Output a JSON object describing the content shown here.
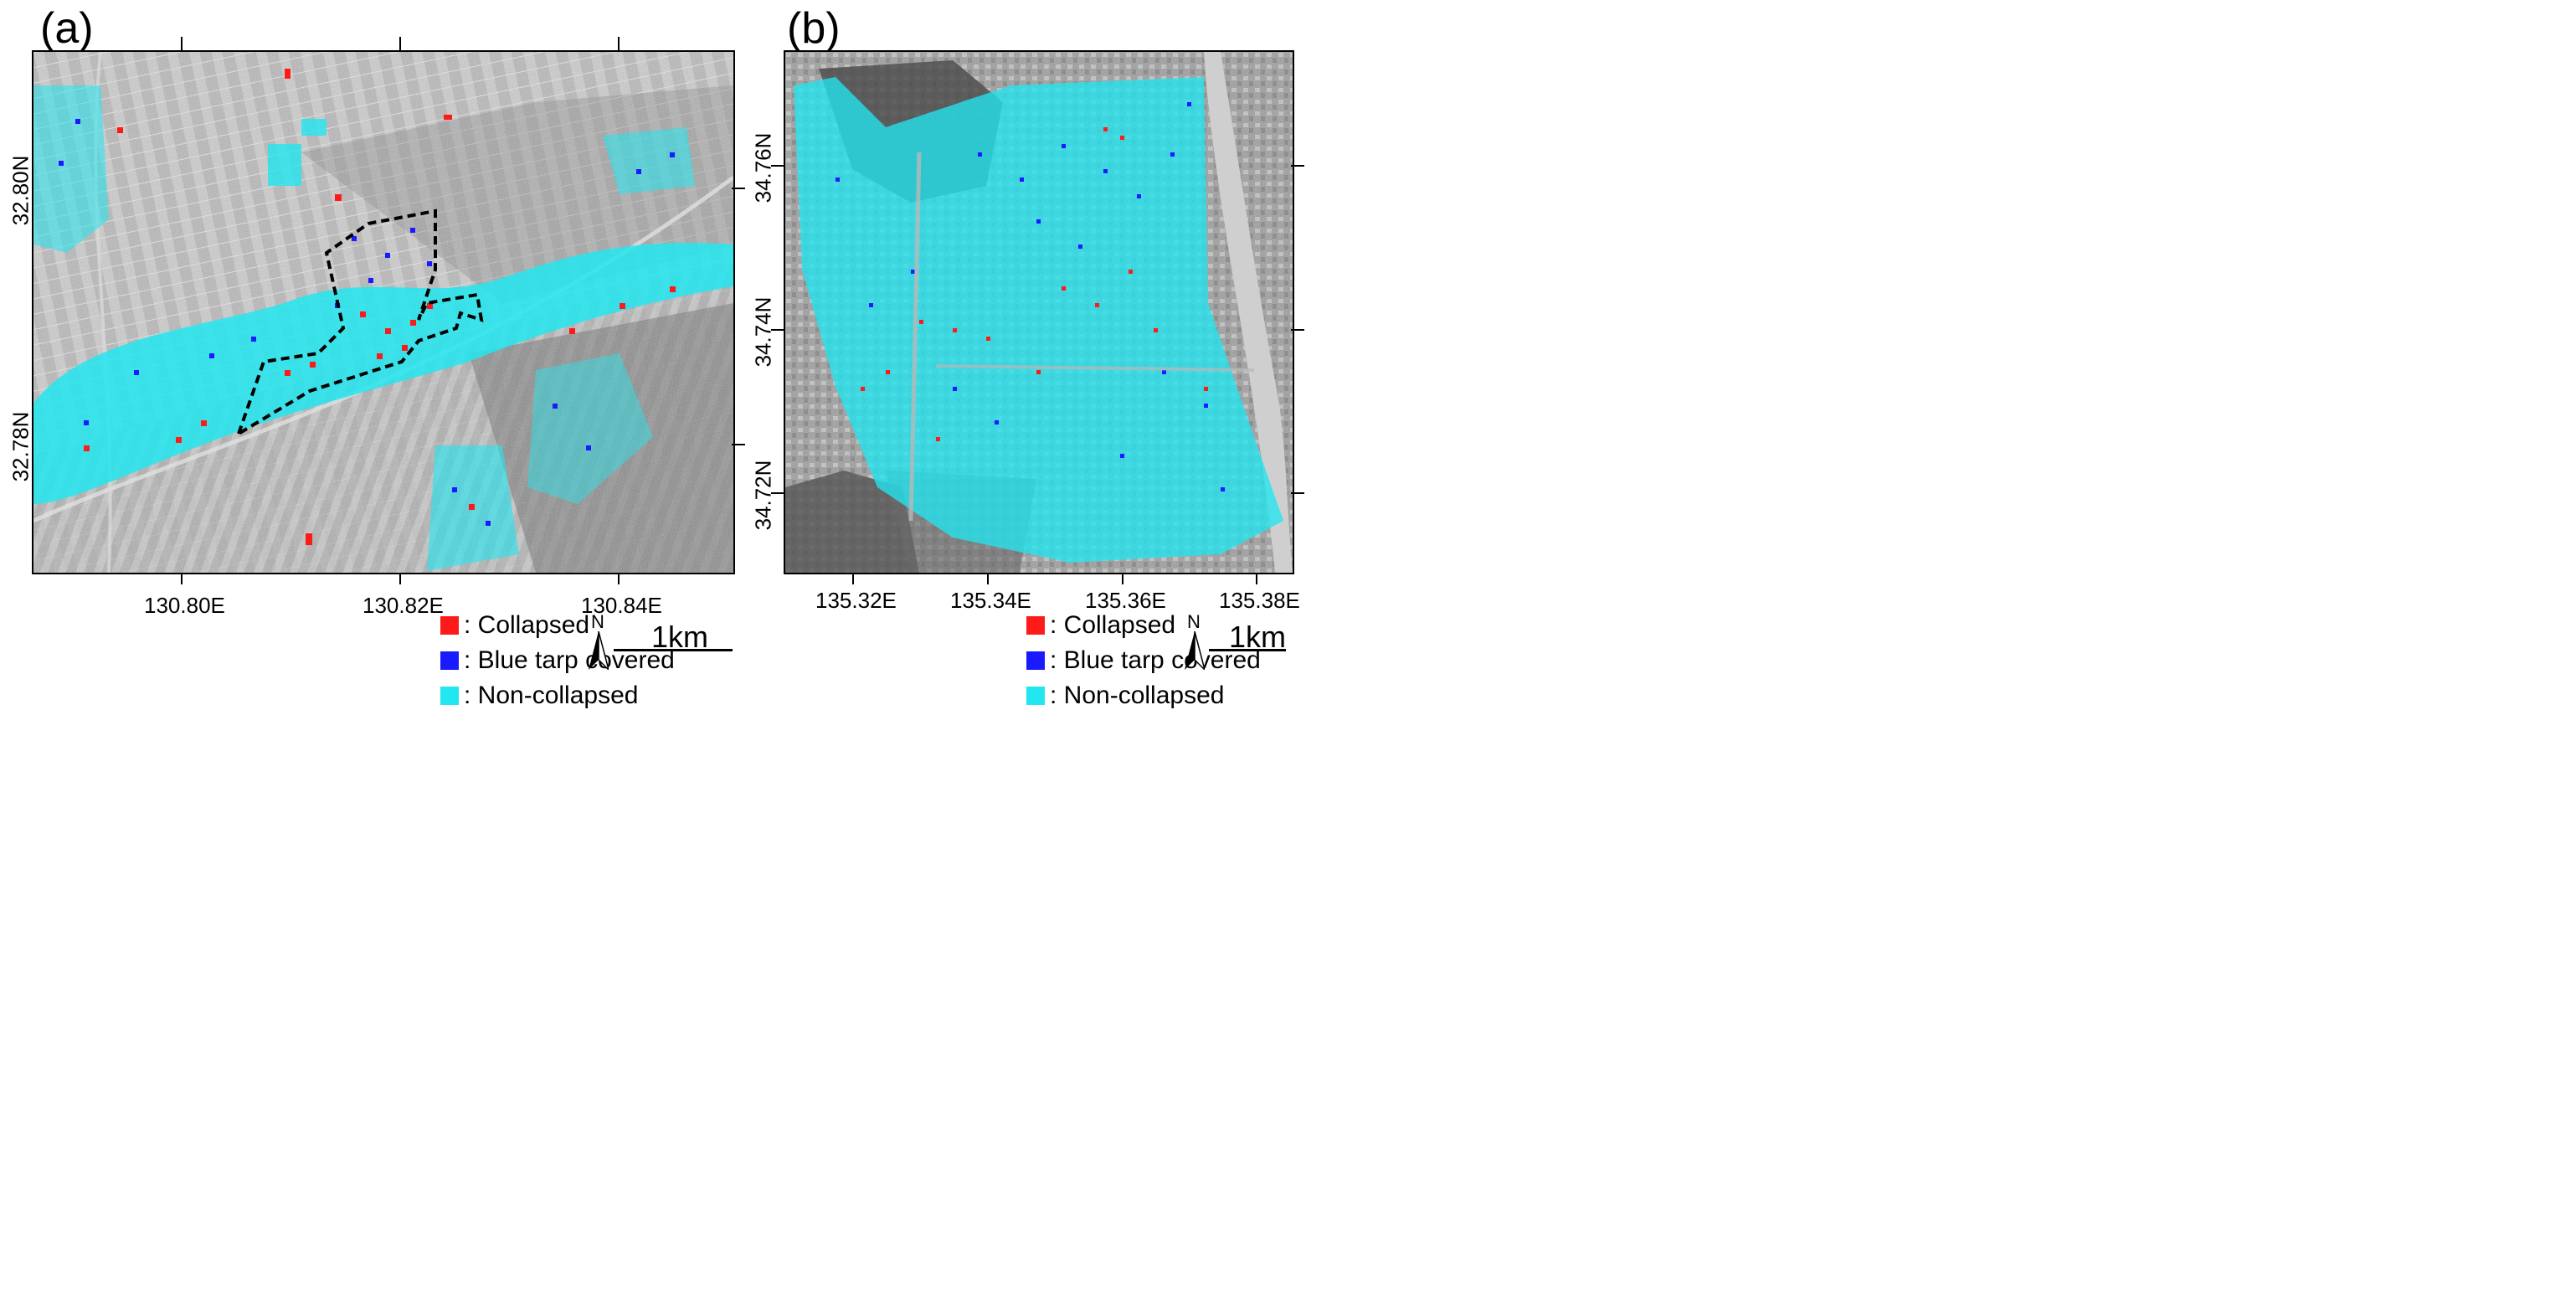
{
  "colors": {
    "collapsed": "#ff1a1a",
    "blue_tarp": "#1a1aff",
    "non_collapsed": "#22e6f0",
    "boundary": "#000000"
  },
  "panels": [
    {
      "letter": "(a)",
      "lon_ticks": [
        "130.80E",
        "130.82E",
        "130.84E"
      ],
      "lat_ticks": [
        "32.80N",
        "32.78N"
      ],
      "legend": [
        {
          "key": "collapsed",
          "label": ": Collapsed"
        },
        {
          "key": "blue_tarp",
          "label": ": Blue tarp covered"
        },
        {
          "key": "non_collapsed",
          "label": ": Non-collapsed"
        }
      ],
      "north_label": "N",
      "scale_label": "1km"
    },
    {
      "letter": "(b)",
      "lon_ticks": [
        "135.32E",
        "135.34E",
        "135.36E",
        "135.38E"
      ],
      "lat_ticks": [
        "34.76N",
        "34.74N",
        "34.72N"
      ],
      "legend": [
        {
          "key": "collapsed",
          "label": ": Collapsed"
        },
        {
          "key": "blue_tarp",
          "label": ": Blue tarp covered"
        },
        {
          "key": "non_collapsed",
          "label": ": Non-collapsed"
        }
      ],
      "north_label": "N",
      "scale_label": "1km"
    }
  ]
}
